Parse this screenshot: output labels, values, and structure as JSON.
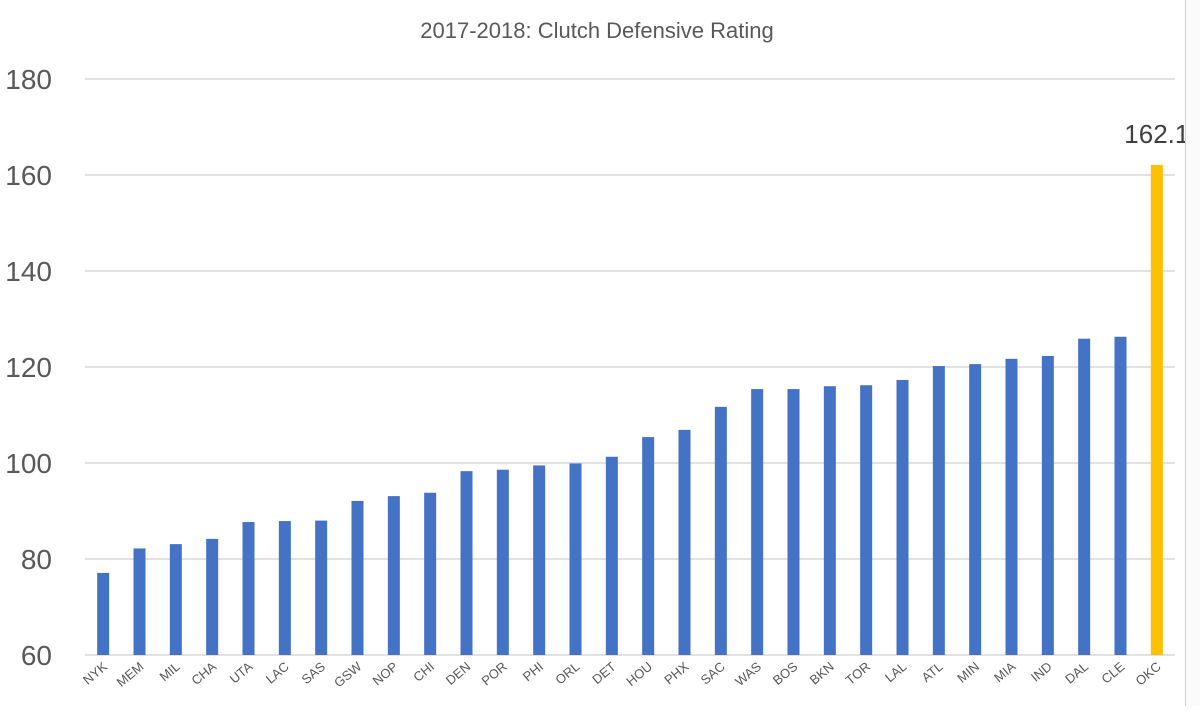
{
  "chart_data": {
    "type": "bar",
    "title": "2017-2018: Clutch Defensive Rating",
    "xlabel": "",
    "ylabel": "",
    "ylim": [
      60,
      180
    ],
    "yticks": [
      60,
      80,
      100,
      120,
      140,
      160,
      180
    ],
    "grid": true,
    "categories": [
      "NYK",
      "MEM",
      "MIL",
      "CHA",
      "UTA",
      "LAC",
      "SAS",
      "GSW",
      "NOP",
      "CHI",
      "DEN",
      "POR",
      "PHI",
      "ORL",
      "DET",
      "HOU",
      "PHX",
      "SAC",
      "WAS",
      "BOS",
      "BKN",
      "TOR",
      "LAL",
      "ATL",
      "MIN",
      "MIA",
      "IND",
      "DAL",
      "CLE",
      "OKC"
    ],
    "values": [
      77.1,
      82.2,
      83.1,
      84.2,
      87.7,
      87.9,
      88.0,
      92.1,
      93.1,
      93.8,
      98.3,
      98.6,
      99.5,
      99.9,
      101.3,
      105.4,
      106.9,
      111.7,
      115.4,
      115.4,
      116.0,
      116.2,
      117.3,
      120.2,
      120.6,
      121.7,
      122.3,
      125.9,
      126.3,
      162.1
    ],
    "highlight": {
      "category": "OKC",
      "label": "162.1"
    },
    "colors": {
      "bar": "#4472C4",
      "highlight": "#FFC000",
      "grid": "#d9d9d9",
      "text": "#595959"
    }
  }
}
